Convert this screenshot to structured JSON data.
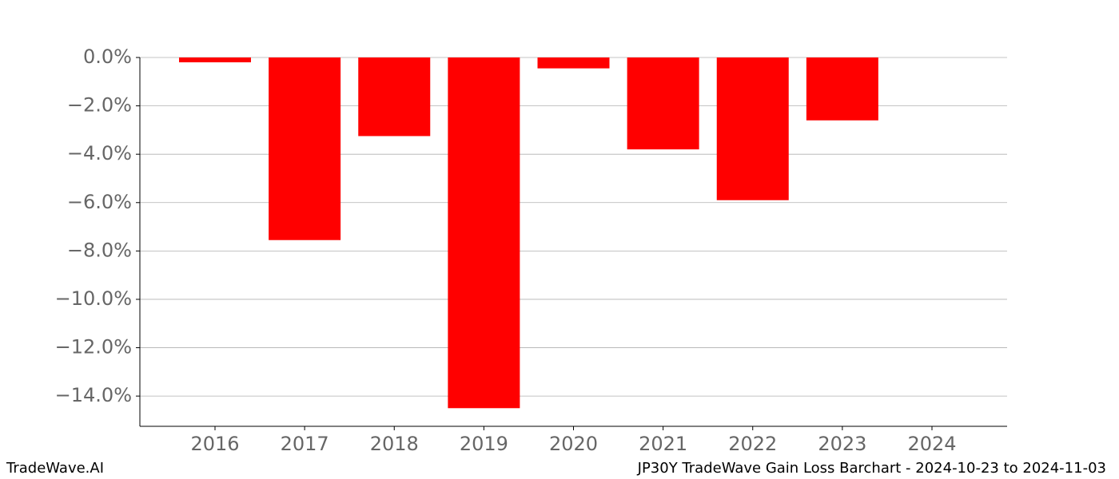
{
  "chart_data": {
    "type": "bar",
    "title": "JP30Y TradeWave Gain Loss Barchart - 2024-10-23 to 2024-11-03",
    "watermark": "TradeWave.AI",
    "categories": [
      "2016",
      "2017",
      "2018",
      "2019",
      "2020",
      "2021",
      "2022",
      "2023",
      "2024"
    ],
    "values": [
      -0.2,
      -7.55,
      -3.25,
      -14.5,
      -0.45,
      -3.8,
      -5.9,
      -2.6,
      null
    ],
    "color": "#ff0000",
    "ylim": [
      -15.25,
      0
    ],
    "yticks": [
      {
        "value": 0,
        "label": "0.0%"
      },
      {
        "value": -2,
        "label": "−2.0%"
      },
      {
        "value": -4,
        "label": "−4.0%"
      },
      {
        "value": -6,
        "label": "−6.0%"
      },
      {
        "value": -8,
        "label": "−8.0%"
      },
      {
        "value": -10,
        "label": "−10.0%"
      },
      {
        "value": -12,
        "label": "−12.0%"
      },
      {
        "value": -14,
        "label": "−14.0%"
      }
    ],
    "grid": true
  }
}
